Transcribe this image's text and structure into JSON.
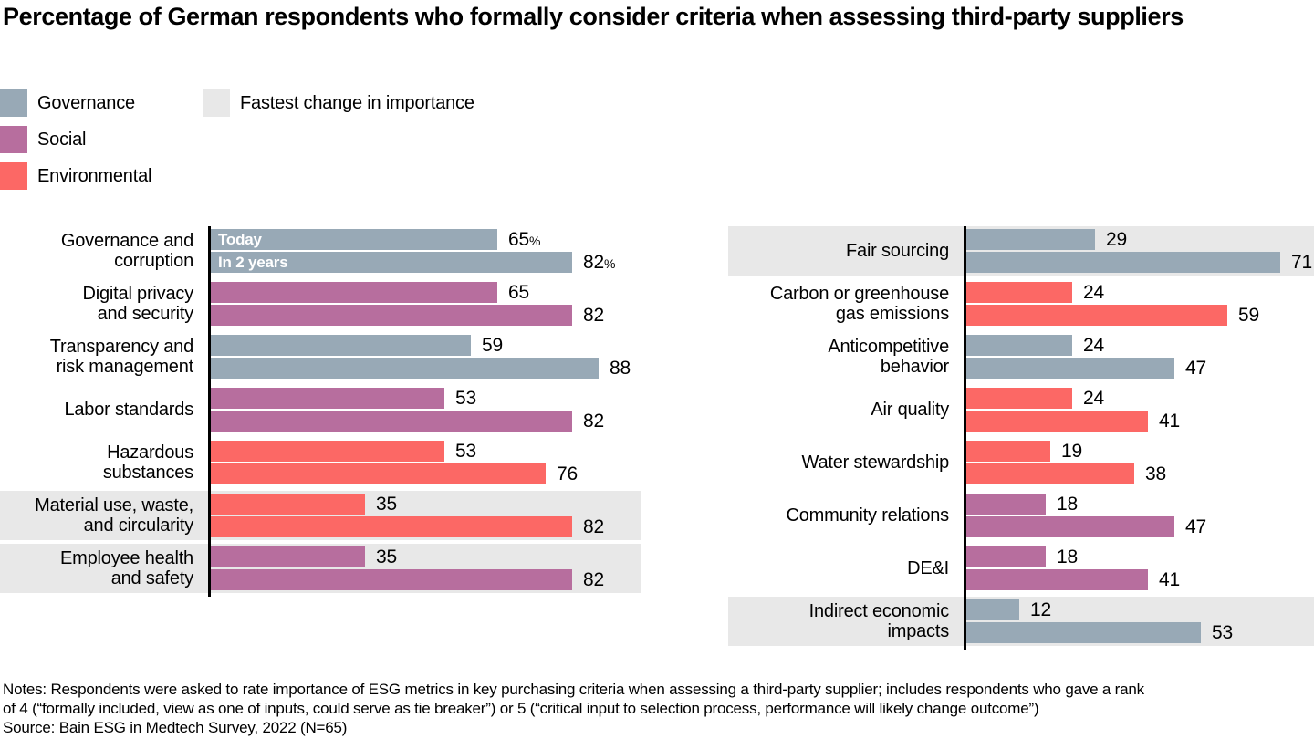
{
  "title": "Percentage of German respondents who formally consider criteria when assessing third-party suppliers",
  "colors": {
    "Governance": "#98a9b6",
    "Social": "#b76e9e",
    "Environmental": "#fc6865",
    "highlight": "#e8e8e8",
    "axis": "#000000",
    "bar_label_text": "#ffffff"
  },
  "legend": {
    "items": [
      {
        "label": "Governance",
        "color": "#98a9b6"
      },
      {
        "label": "Social",
        "color": "#b76e9e"
      },
      {
        "label": "Environmental",
        "color": "#fc6865"
      }
    ],
    "highlight_item": {
      "label": "Fastest change in importance",
      "color": "#e8e8e8"
    }
  },
  "chart_data": [
    {
      "type": "bar",
      "orientation": "horizontal",
      "series": [
        "Today",
        "In 2 years"
      ],
      "unit": "%",
      "xlim": [
        0,
        100
      ],
      "legend_position": "inside-first-bars",
      "grid": false,
      "rows": [
        {
          "category": "Governance and\ncorruption",
          "group": "Governance",
          "values": [
            65,
            82
          ],
          "suffix": "%",
          "bar_labels": [
            "Today",
            "In 2 years"
          ],
          "highlight": false
        },
        {
          "category": "Digital privacy\nand security",
          "group": "Social",
          "values": [
            65,
            82
          ],
          "highlight": false
        },
        {
          "category": "Transparency and\nrisk management",
          "group": "Governance",
          "values": [
            59,
            88
          ],
          "highlight": false
        },
        {
          "category": "Labor standards",
          "group": "Social",
          "values": [
            53,
            82
          ],
          "highlight": false
        },
        {
          "category": "Hazardous\nsubstances",
          "group": "Environmental",
          "values": [
            53,
            76
          ],
          "highlight": false
        },
        {
          "category": "Material use, waste,\nand circularity",
          "group": "Environmental",
          "values": [
            35,
            82
          ],
          "highlight": true
        },
        {
          "category": "Employee health\nand safety",
          "group": "Social",
          "values": [
            35,
            82
          ],
          "highlight": true
        }
      ]
    },
    {
      "type": "bar",
      "orientation": "horizontal",
      "series": [
        "Today",
        "In 2 years"
      ],
      "unit": "%",
      "xlim": [
        0,
        100
      ],
      "grid": false,
      "rows": [
        {
          "category": "Fair sourcing",
          "group": "Governance",
          "values": [
            29,
            71
          ],
          "highlight": true
        },
        {
          "category": "Carbon or greenhouse\ngas emissions",
          "group": "Environmental",
          "values": [
            24,
            59
          ],
          "highlight": false
        },
        {
          "category": "Anticompetitive\nbehavior",
          "group": "Governance",
          "values": [
            24,
            47
          ],
          "highlight": false
        },
        {
          "category": "Air quality",
          "group": "Environmental",
          "values": [
            24,
            41
          ],
          "highlight": false
        },
        {
          "category": "Water stewardship",
          "group": "Environmental",
          "values": [
            19,
            38
          ],
          "highlight": false
        },
        {
          "category": "Community relations",
          "group": "Social",
          "values": [
            18,
            47
          ],
          "highlight": false
        },
        {
          "category": "DE&I",
          "group": "Social",
          "values": [
            18,
            41
          ],
          "highlight": false
        },
        {
          "category": "Indirect economic\nimpacts",
          "group": "Governance",
          "values": [
            12,
            53
          ],
          "highlight": true
        }
      ]
    }
  ],
  "notes": "Notes: Respondents were asked to rate importance of ESG metrics in key purchasing criteria when assessing a third-party supplier; includes respondents who gave a rank\nof 4 (“formally included, view as one of inputs, could serve as tie breaker”) or 5 (“critical input to selection process, performance will likely change outcome”)",
  "source": "Source: Bain ESG in Medtech Survey, 2022 (N=65)"
}
